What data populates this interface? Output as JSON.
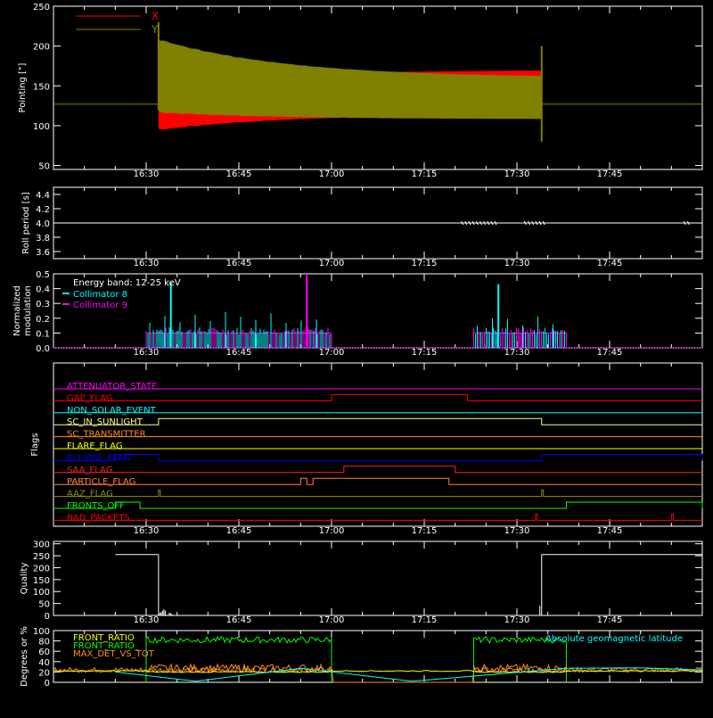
{
  "colors": {
    "axes": "#ffffff",
    "x_series": "#ff0000",
    "y_series": "#808000",
    "cyan": "#00ffff",
    "magenta": "#ff00ff",
    "green": "#00ff00",
    "orange": "#ff8c1a",
    "yellow": "#ffff00",
    "blue": "#0000ff",
    "red": "#ff0000"
  },
  "chart_data": [
    {
      "type": "area",
      "ylabel": "Pointing [\"]",
      "ylim": [
        45,
        250
      ],
      "yticks": [
        50,
        100,
        150,
        200,
        250
      ],
      "xlim": [
        16.25,
        18.0
      ],
      "xticks": [
        "16:30",
        "16:45",
        "17:00",
        "17:15",
        "17:30",
        "17:45"
      ],
      "legend": {
        "position": "top-left",
        "entries": [
          {
            "name": "X",
            "color": "#ff0000"
          },
          {
            "name": "Y",
            "color": "#808000"
          }
        ]
      },
      "baseline": 127,
      "active_start": "16:32",
      "active_end": "17:34",
      "envelope_start": {
        "X": [
          98,
          150
        ],
        "Y": [
          120,
          205
        ]
      },
      "envelope_end": {
        "X": [
          115,
          170
        ],
        "Y": [
          108,
          160
        ]
      }
    },
    {
      "type": "line",
      "ylabel": "Roll period [s]",
      "ylim": [
        3.5,
        4.5
      ],
      "yticks": [
        "3.6",
        "3.8",
        "4.0",
        "4.2",
        "4.4"
      ],
      "xticks": [
        "16:30",
        "16:45",
        "17:00",
        "17:15",
        "17:30",
        "17:45"
      ],
      "value": 4.0
    },
    {
      "type": "bar",
      "ylabel": "Normalized modulation",
      "ylim": [
        0.0,
        0.5
      ],
      "yticks": [
        "0.0",
        "0.1",
        "0.2",
        "0.3",
        "0.4",
        "0.5"
      ],
      "xticks": [
        "16:30",
        "16:45",
        "17:00",
        "17:15",
        "17:30",
        "17:45"
      ],
      "legend_title": "Energy band: 12-25 keV",
      "series": [
        {
          "name": "Collimator 8",
          "color": "#00ffff",
          "windows": [
            [
              "16:30",
              "17:00"
            ],
            [
              "17:23",
              "17:38"
            ]
          ]
        },
        {
          "name": "Collimator 9",
          "color": "#ff00ff",
          "windows": [
            [
              "16:30",
              "17:00"
            ],
            [
              "17:23",
              "17:38"
            ]
          ]
        }
      ],
      "spikes": [
        {
          "t": "16:34",
          "v": 0.44,
          "series": "Collimator 8"
        },
        {
          "t": "16:56",
          "v": 0.5,
          "series": "Collimator 9"
        },
        {
          "t": "17:27",
          "v": 0.43,
          "series": "Collimator 8"
        }
      ]
    },
    {
      "type": "line",
      "ylabel": "Flags",
      "xticks": [
        "16:30",
        "16:45",
        "17:00",
        "17:15",
        "17:30",
        "17:45"
      ],
      "flags": [
        {
          "name": "ATTENUATOR_STATE",
          "color": "#ff00ff",
          "on": []
        },
        {
          "name": "GAP_FLAG",
          "color": "#ff0000",
          "on": [
            [
              "17:00",
              "17:22"
            ]
          ]
        },
        {
          "name": "NON_SOLAR_EVENT",
          "color": "#00ffff",
          "on": []
        },
        {
          "name": "SC_IN_SUNLIGHT",
          "color": "#ffff80",
          "on": [
            [
              "16:32",
              "17:34"
            ]
          ]
        },
        {
          "name": "SC_TRANSMITTER",
          "color": "#ff8c1a",
          "on": []
        },
        {
          "name": "FLARE_FLAG",
          "color": "#ffff00",
          "on": []
        },
        {
          "name": "ECLIPSE_FLAG",
          "color": "#0000ff",
          "on": [
            [
              "16:25",
              "16:32"
            ],
            [
              "17:34",
              "18:00"
            ]
          ]
        },
        {
          "name": "SAA_FLAG",
          "color": "#ff2020",
          "on": [
            [
              "17:02",
              "17:20"
            ]
          ]
        },
        {
          "name": "PARTICLE_FLAG",
          "color": "#ff8040",
          "on": [
            [
              "16:55",
              "16:56"
            ],
            [
              "16:57",
              "17:19"
            ]
          ]
        },
        {
          "name": "AAZ_FLAG",
          "color": "#909000",
          "on": [
            [
              "16:32",
              "16:32"
            ],
            [
              "17:34",
              "17:34"
            ]
          ]
        },
        {
          "name": "FRONTS_OFF",
          "color": "#00ff00",
          "on": [
            [
              "16:25",
              "16:29"
            ],
            [
              "17:38",
              "18:00"
            ]
          ]
        },
        {
          "name": "BAD_PACKETS",
          "color": "#ff0000",
          "on": [
            [
              "17:33",
              "17:33"
            ],
            [
              "17:55",
              "17:55"
            ]
          ]
        }
      ]
    },
    {
      "type": "line",
      "ylabel": "Quality",
      "ylim": [
        0,
        310
      ],
      "yticks": [
        0,
        50,
        100,
        150,
        200,
        250,
        300
      ],
      "xticks": [
        "16:30",
        "16:45",
        "17:00",
        "17:15",
        "17:30",
        "17:45"
      ],
      "high_value": 255,
      "high_windows": [
        [
          "16:25",
          "16:32"
        ],
        [
          "17:34",
          "18:00"
        ]
      ]
    },
    {
      "type": "line",
      "ylabel": "Degrees or %",
      "ylim": [
        0,
        100
      ],
      "yticks": [
        0,
        20,
        40,
        60,
        80,
        100
      ],
      "xticks": [
        "16:30",
        "16:45",
        "17:00",
        "17:15",
        "17:30",
        "17:45"
      ],
      "legend_right": "Absolute geomagnetic latitude",
      "series": [
        {
          "name": "FRONT_RATIO",
          "color": "#ffff00"
        },
        {
          "name": "FRONT_RATIO_",
          "color": "#00ff00"
        },
        {
          "name": "MAX_DET_VS_TOT",
          "color": "#ff8c1a"
        },
        {
          "name": "Absolute geomagnetic latitude",
          "color": "#00ffff"
        }
      ],
      "green_level": 82,
      "green_windows": [
        [
          "16:30",
          "17:00"
        ],
        [
          "17:23",
          "17:38"
        ]
      ],
      "orange_level": 24,
      "latitude_points": [
        [
          "16:25",
          20
        ],
        [
          "16:38",
          2
        ],
        [
          "16:55",
          27
        ],
        [
          "17:13",
          2
        ],
        [
          "17:38",
          27
        ],
        [
          "17:50",
          28
        ],
        [
          "18:00",
          24
        ]
      ]
    }
  ]
}
